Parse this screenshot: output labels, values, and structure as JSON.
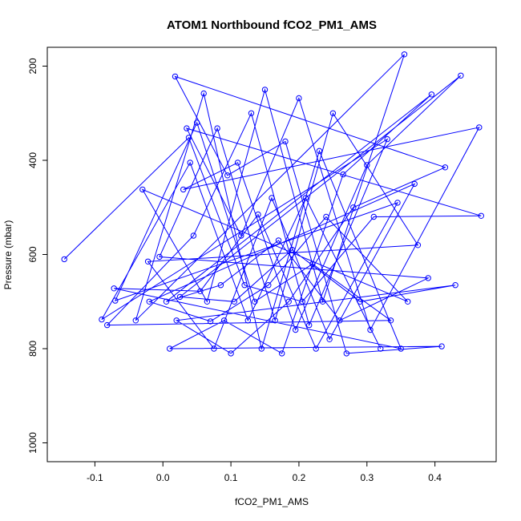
{
  "chart_data": {
    "type": "line",
    "title": "ATOM1 Northbound fCO2_PM1_AMS",
    "xlabel": "fCO2_PM1_AMS",
    "ylabel": "Pressure (mbar)",
    "xlim": [
      -0.17,
      0.49
    ],
    "ylim": [
      1040,
      160
    ],
    "y_reversed": true,
    "x_ticks": [
      -0.1,
      0.0,
      0.1,
      0.2,
      0.3,
      0.4
    ],
    "x_tick_labels": [
      "-0.1",
      "0.0",
      "0.1",
      "0.2",
      "0.3",
      "0.4"
    ],
    "y_ticks": [
      200,
      400,
      600,
      800,
      1000
    ],
    "y_tick_labels": [
      "200",
      "400",
      "600",
      "800",
      "1000"
    ],
    "grid": false,
    "series": [
      {
        "color": "#0000ff",
        "marker": "open-circle",
        "points": [
          [
            -0.145,
            610
          ],
          [
            -0.09,
            738
          ],
          [
            -0.082,
            750
          ],
          [
            -0.07,
            698
          ],
          [
            -0.072,
            672
          ],
          [
            -0.04,
            740
          ],
          [
            -0.03,
            462
          ],
          [
            -0.02,
            700
          ],
          [
            -0.022,
            615
          ],
          [
            -0.005,
            605
          ],
          [
            0.005,
            700
          ],
          [
            0.01,
            800
          ],
          [
            0.018,
            222
          ],
          [
            0.02,
            740
          ],
          [
            0.025,
            690
          ],
          [
            0.03,
            462
          ],
          [
            0.035,
            332
          ],
          [
            0.038,
            352
          ],
          [
            0.04,
            405
          ],
          [
            0.045,
            560
          ],
          [
            0.05,
            320
          ],
          [
            0.055,
            678
          ],
          [
            0.06,
            258
          ],
          [
            0.065,
            700
          ],
          [
            0.07,
            742
          ],
          [
            0.075,
            800
          ],
          [
            0.08,
            332
          ],
          [
            0.085,
            665
          ],
          [
            0.09,
            740
          ],
          [
            0.095,
            432
          ],
          [
            0.1,
            810
          ],
          [
            0.105,
            700
          ],
          [
            0.11,
            405
          ],
          [
            0.115,
            560
          ],
          [
            0.12,
            665
          ],
          [
            0.125,
            740
          ],
          [
            0.13,
            300
          ],
          [
            0.135,
            700
          ],
          [
            0.14,
            515
          ],
          [
            0.145,
            800
          ],
          [
            0.15,
            250
          ],
          [
            0.155,
            665
          ],
          [
            0.16,
            480
          ],
          [
            0.165,
            740
          ],
          [
            0.17,
            570
          ],
          [
            0.175,
            810
          ],
          [
            0.18,
            360
          ],
          [
            0.185,
            700
          ],
          [
            0.19,
            590
          ],
          [
            0.195,
            760
          ],
          [
            0.2,
            268
          ],
          [
            0.205,
            700
          ],
          [
            0.21,
            480
          ],
          [
            0.215,
            750
          ],
          [
            0.22,
            620
          ],
          [
            0.225,
            800
          ],
          [
            0.23,
            380
          ],
          [
            0.235,
            700
          ],
          [
            0.24,
            520
          ],
          [
            0.245,
            780
          ],
          [
            0.25,
            300
          ],
          [
            0.26,
            740
          ],
          [
            0.265,
            430
          ],
          [
            0.27,
            810
          ],
          [
            0.28,
            500
          ],
          [
            0.29,
            700
          ],
          [
            0.3,
            410
          ],
          [
            0.305,
            760
          ],
          [
            0.31,
            520
          ],
          [
            0.32,
            800
          ],
          [
            0.33,
            355
          ],
          [
            0.335,
            740
          ],
          [
            0.345,
            490
          ],
          [
            0.35,
            800
          ],
          [
            0.355,
            175
          ],
          [
            0.36,
            700
          ],
          [
            0.37,
            450
          ],
          [
            0.375,
            580
          ],
          [
            0.39,
            650
          ],
          [
            0.395,
            260
          ],
          [
            0.41,
            795
          ],
          [
            0.415,
            415
          ],
          [
            0.43,
            665
          ],
          [
            0.438,
            220
          ],
          [
            0.465,
            330
          ],
          [
            0.468,
            518
          ]
        ]
      }
    ]
  }
}
